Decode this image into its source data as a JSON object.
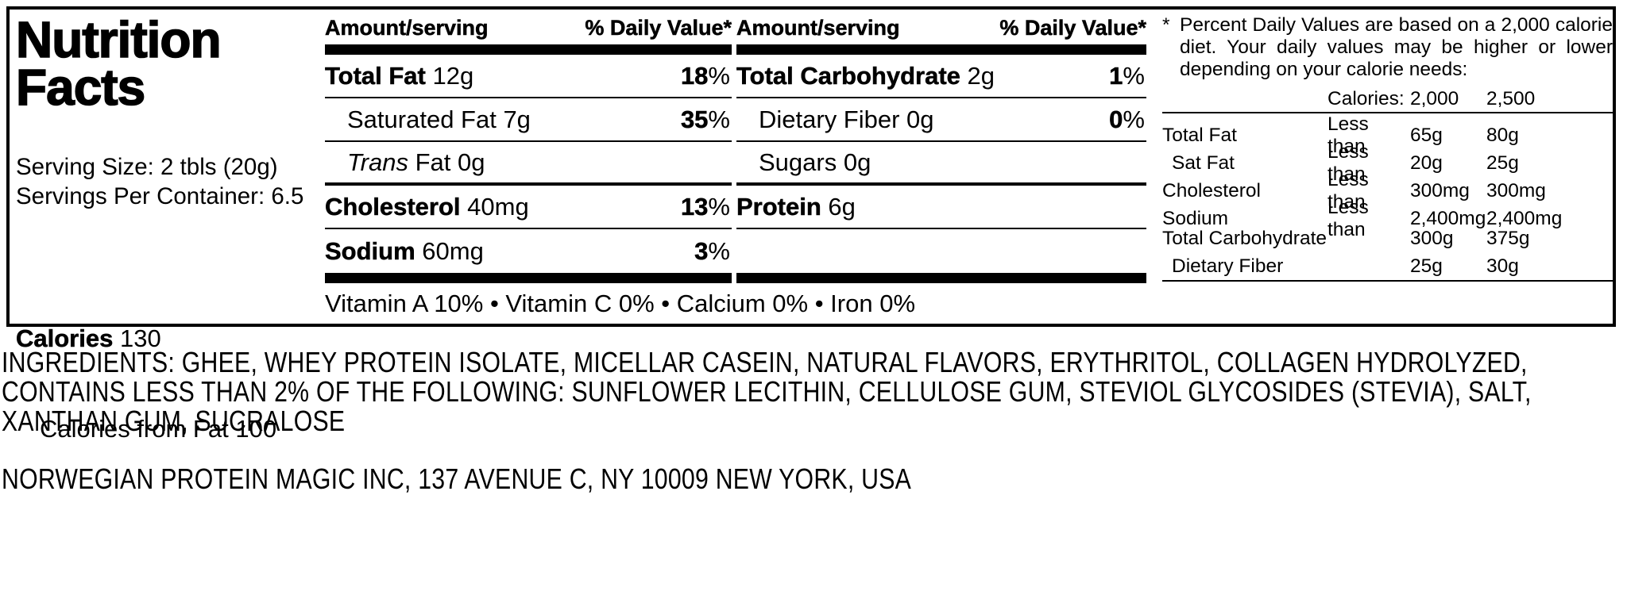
{
  "colors": {
    "text": "#000000",
    "background": "#ffffff"
  },
  "strings": {
    "percent": "%"
  },
  "label": {
    "title": "Nutrition Facts",
    "serving": {
      "serving_size": "Serving Size: 2 tbls (20g)",
      "servings_per_container": "Servings Per Container: 6.5"
    },
    "calories": {
      "b": "Calories",
      "r": " 130",
      "from_fat": "Calories from Fat 100"
    },
    "columns": [
      {
        "header_amount": "Amount/serving",
        "header_dv": "% Daily Value*",
        "rows": [
          {
            "b": "Total Fat",
            "i": "",
            "r": " 12g",
            "dv": "18"
          },
          {
            "b": "",
            "i": "",
            "r": "Saturated Fat 7g",
            "dv": "35"
          },
          {
            "b": "",
            "i": "Trans",
            "r": " Fat 0g",
            "dv": ""
          },
          {
            "b": "Cholesterol",
            "i": "",
            "r": " 40mg",
            "dv": "13"
          },
          {
            "b": "Sodium",
            "i": "",
            "r": " 60mg",
            "dv": "3"
          }
        ]
      },
      {
        "header_amount": "Amount/serving",
        "header_dv": "% Daily Value*",
        "rows": [
          {
            "b": "Total Carbohydrate",
            "i": "",
            "r": " 2g",
            "dv": "1"
          },
          {
            "b": "",
            "i": "",
            "r": "Dietary Fiber 0g",
            "dv": "0"
          },
          {
            "b": "",
            "i": "",
            "r": "Sugars 0g",
            "dv": ""
          },
          {
            "b": "Protein",
            "i": "",
            "r": " 6g",
            "dv": ""
          }
        ]
      }
    ],
    "vitamins": "Vitamin A 10% • Vitamin C 0% • Calcium 0% • Iron 0%",
    "footnote": {
      "asterisk": "*",
      "text": "Percent Daily Values are based on a 2,000 calorie diet. Your daily values may be higher or lower depending on your calorie needs:",
      "table": {
        "header": {
          "calories_label": "Calories:",
          "v2000": "2,000",
          "v2500": "2,500"
        },
        "rows": [
          {
            "label": "Total Fat",
            "qual": "Less than",
            "v2000": "65g",
            "v2500": "80g"
          },
          {
            "label": "Sat Fat",
            "qual": "Less than",
            "v2000": "20g",
            "v2500": "25g"
          },
          {
            "label": "Cholesterol",
            "qual": "Less than",
            "v2000": "300mg",
            "v2500": "300mg"
          },
          {
            "label": "Sodium",
            "qual": "Less than",
            "v2000": "2,400mg",
            "v2500": "2,400mg"
          },
          {
            "label": "Total Carbohydrate",
            "qual": "",
            "v2000": "300g",
            "v2500": "375g"
          },
          {
            "label": "Dietary Fiber",
            "qual": "",
            "v2000": "25g",
            "v2500": "30g"
          }
        ]
      }
    }
  },
  "ingredients": "INGREDIENTS: GHEE, WHEY PROTEIN ISOLATE, MICELLAR CASEIN, NATURAL FLAVORS, ERYTHRITOL, COLLAGEN HYDROLYZED, CONTAINS LESS THAN 2% OF THE FOLLOWING: SUNFLOWER LECITHIN, CELLULOSE GUM, STEVIOL GLYCOSIDES (STEVIA), SALT, XANTHAN GUM, SUCRALOSE",
  "manufacturer": "NORWEGIAN PROTEIN MAGIC INC, 137 AVENUE C, NY 10009 NEW YORK, USA"
}
